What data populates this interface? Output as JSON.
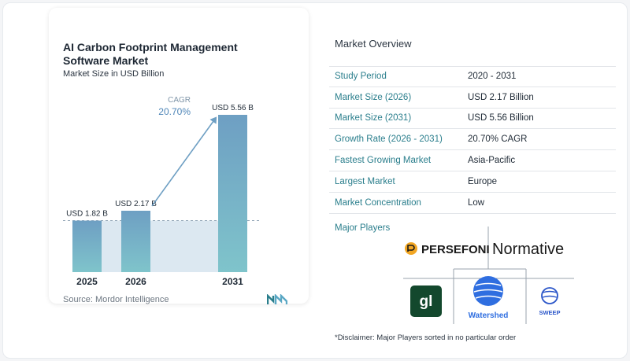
{
  "chart": {
    "title": "AI Carbon Footprint Management Software Market",
    "subtitle": "Market Size in USD Billion",
    "cagr_label": "CAGR",
    "cagr_value": "20.70%",
    "source": "Source:  Mordor Intelligence"
  },
  "chart_data": {
    "type": "bar",
    "title": "AI Carbon Footprint Management Software Market",
    "subtitle": "Market Size in USD Billion",
    "categories": [
      "2025",
      "2026",
      "2031"
    ],
    "values": [
      1.82,
      2.17,
      5.56
    ],
    "data_labels": [
      "USD 1.82 B",
      "USD 2.17 B",
      "USD 5.56 B"
    ],
    "ylim": [
      0,
      5.56
    ],
    "grid": false,
    "colors": {
      "bar_top": "#6e9fc3",
      "bar_bottom": "#7fc4cb",
      "band": "#dce8f1",
      "arrow": "#6e9fc3"
    }
  },
  "overview": {
    "title": "Market Overview",
    "rows": [
      {
        "label": "Study Period",
        "value": "2020 - 2031"
      },
      {
        "label": "Market Size (2026)",
        "value": "USD 2.17 Billion"
      },
      {
        "label": "Market Size (2031)",
        "value": "USD 5.56 Billion"
      },
      {
        "label": "Growth Rate (2026 - 2031)",
        "value": "20.70% CAGR"
      },
      {
        "label": "Fastest Growing Market",
        "value": "Asia-Pacific"
      },
      {
        "label": "Largest Market",
        "value": "Europe"
      },
      {
        "label": "Market Concentration",
        "value": "Low"
      }
    ]
  },
  "players": {
    "title": "Major Players",
    "names": [
      "PERSEFONI",
      "Normative",
      "gl",
      "Watershed",
      "SWEEP"
    ]
  },
  "disclaimer": "*Disclaimer: Major Players sorted in no particular order"
}
